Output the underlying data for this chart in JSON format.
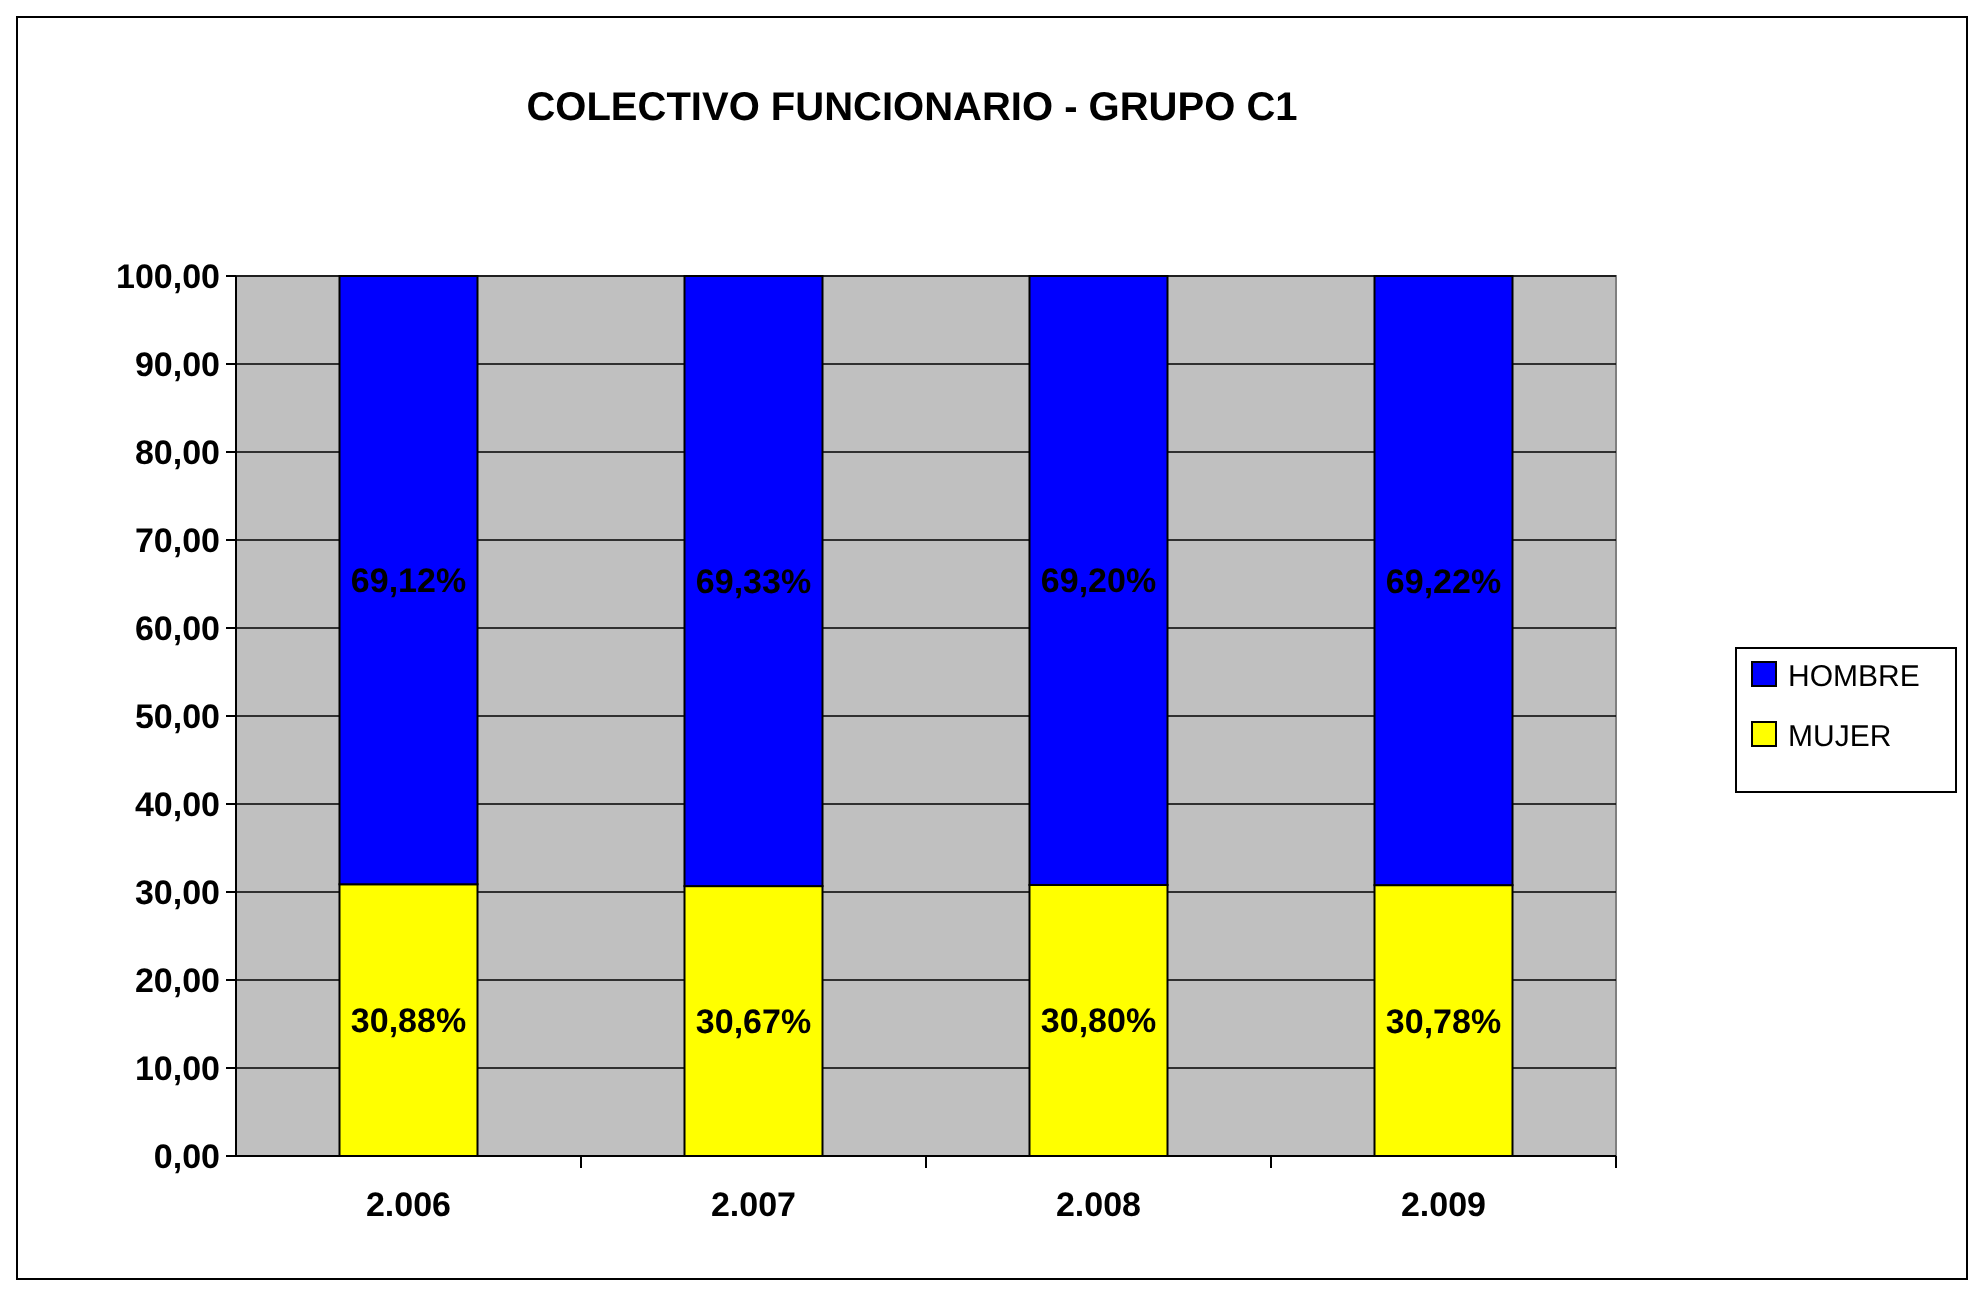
{
  "chart_data": {
    "type": "bar",
    "title": "COLECTIVO FUNCIONARIO - GRUPO C1",
    "categories": [
      "2.006",
      "2.007",
      "2.008",
      "2.009"
    ],
    "stacked": true,
    "series": [
      {
        "name": "MUJER",
        "color": "#ffff00",
        "values": [
          30.88,
          30.67,
          30.8,
          30.78
        ],
        "value_labels": [
          "30,88%",
          "30,67%",
          "30,80%",
          "30,78%"
        ]
      },
      {
        "name": "HOMBRE",
        "color": "#0000ff",
        "values": [
          69.12,
          69.33,
          69.2,
          69.22
        ],
        "value_labels": [
          "69,12%",
          "69,33%",
          "69,20%",
          "69,22%"
        ]
      }
    ],
    "ylim": [
      0,
      100
    ],
    "yticks": [
      {
        "value": 0,
        "label": "0,00"
      },
      {
        "value": 10,
        "label": "10,00"
      },
      {
        "value": 20,
        "label": "20,00"
      },
      {
        "value": 30,
        "label": "30,00"
      },
      {
        "value": 40,
        "label": "40,00"
      },
      {
        "value": 50,
        "label": "50,00"
      },
      {
        "value": 60,
        "label": "60,00"
      },
      {
        "value": 70,
        "label": "70,00"
      },
      {
        "value": 80,
        "label": "80,00"
      },
      {
        "value": 90,
        "label": "90,00"
      },
      {
        "value": 100,
        "label": "100,00"
      }
    ],
    "grid": "y",
    "legend": "right"
  }
}
